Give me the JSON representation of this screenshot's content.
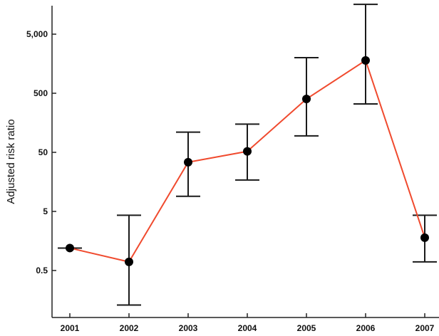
{
  "chart_data": {
    "type": "line",
    "ylabel": "Adjusted risk ratio",
    "xlabel": "",
    "y_scale": "log",
    "ylim": [
      0.12,
      20000
    ],
    "x_categories": [
      "2001",
      "2002",
      "2003",
      "2004",
      "2005",
      "2006",
      "2007"
    ],
    "y_ticks": [
      {
        "value": 0.5,
        "label": "0.5"
      },
      {
        "value": 5,
        "label": "5"
      },
      {
        "value": 50,
        "label": "50"
      },
      {
        "value": 500,
        "label": "500"
      },
      {
        "value": 5000,
        "label": "5,000"
      }
    ],
    "series": [
      {
        "values": [
          1.2,
          0.7,
          34,
          52,
          400,
          1800,
          1.8
        ],
        "ci_lower": [
          1.2,
          0.13,
          9,
          17,
          95,
          330,
          0.7
        ],
        "ci_upper": [
          1.2,
          4.3,
          110,
          150,
          2000,
          16000,
          4.3
        ]
      }
    ],
    "colors": {
      "line": "#f04a2e",
      "marker": "#000000",
      "error_bar": "#1a1a1a",
      "axis": "#222222"
    },
    "grid": false,
    "legend": "none"
  }
}
